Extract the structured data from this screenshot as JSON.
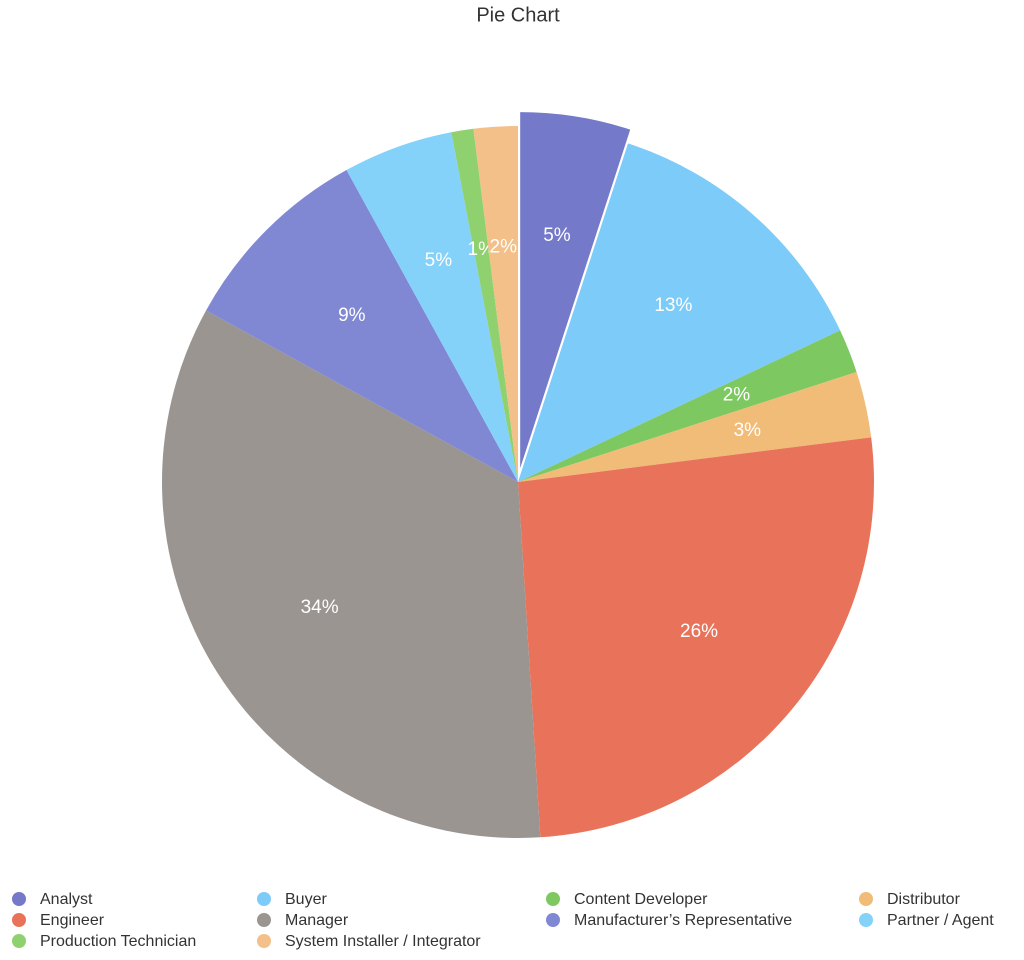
{
  "chart_data": {
    "type": "pie",
    "title": "Pie Chart",
    "categories": [
      "Analyst",
      "Buyer",
      "Content Developer",
      "Distributor",
      "Engineer",
      "Manager",
      "Manufacturer’s Representative",
      "Partner / Agent",
      "Production Technician",
      "System Installer / Integrator"
    ],
    "values": [
      5,
      13,
      2,
      3,
      26,
      34,
      9,
      5,
      1,
      2
    ],
    "value_labels": [
      "5%",
      "13%",
      "2%",
      "3%",
      "26%",
      "34%",
      "9%",
      "5%",
      "1%",
      "2%"
    ],
    "colors": [
      "#7479c9",
      "#7dcbf8",
      "#7ec862",
      "#f0bc78",
      "#e8735a",
      "#9a9591",
      "#8088d4",
      "#84d1f9",
      "#8fd16e",
      "#f2c088"
    ],
    "explode": [
      true,
      false,
      false,
      false,
      false,
      false,
      false,
      false,
      false,
      false
    ],
    "legend": "bottom"
  }
}
